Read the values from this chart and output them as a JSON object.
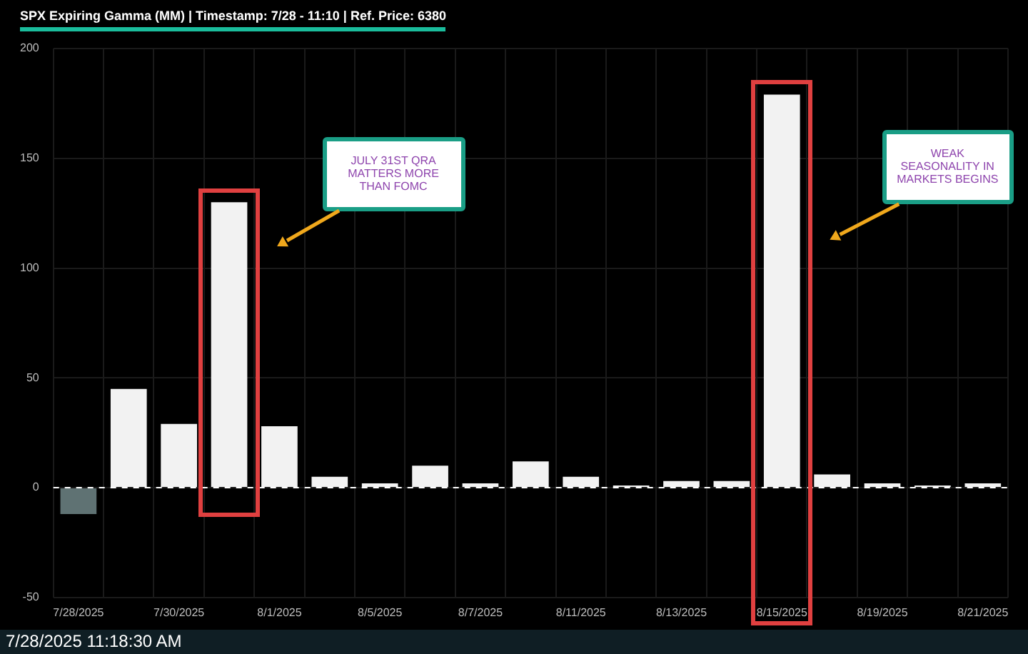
{
  "chart_data": {
    "type": "bar",
    "title": "SPX Expiring Gamma (MM) | Timestamp: 7/28 - 11:10  | Ref. Price: 6380",
    "categories": [
      "7/28/2025",
      null,
      "7/30/2025",
      null,
      "8/1/2025",
      null,
      "8/5/2025",
      null,
      "8/7/2025",
      null,
      "8/11/2025",
      null,
      "8/13/2025",
      null,
      "8/15/2025",
      null,
      "8/19/2025",
      null,
      "8/21/2025"
    ],
    "values": [
      -12,
      45,
      29,
      130,
      28,
      5,
      2,
      10,
      2,
      12,
      5,
      1,
      3,
      3,
      179,
      6,
      2,
      1,
      2
    ],
    "colors": [
      "#5f7273",
      "#f2f2f2",
      "#f2f2f2",
      "#f2f2f2",
      "#f2f2f2",
      "#f2f2f2",
      "#f2f2f2",
      "#f2f2f2",
      "#f2f2f2",
      "#f2f2f2",
      "#f2f2f2",
      "#f2f2f2",
      "#f2f2f2",
      "#f2f2f2",
      "#f2f2f2",
      "#f2f2f2",
      "#f2f2f2",
      "#f2f2f2",
      "#f2f2f2"
    ],
    "ylim": [
      -50,
      200
    ],
    "yticks": [
      -50,
      0,
      50,
      100,
      150,
      200
    ],
    "grid": true,
    "legend": false,
    "ref_lines": [
      {
        "axis": "y",
        "value": 0,
        "color": "#ffffff",
        "line_style": "dashed"
      }
    ],
    "annotations": [
      "JULY 31ST QRA MATTERS MORE THAN FOMC",
      "WEAK SEASONALITY IN MARKETS BEGINS",
      "7/28/2025 11:18:30 AM"
    ]
  }
}
